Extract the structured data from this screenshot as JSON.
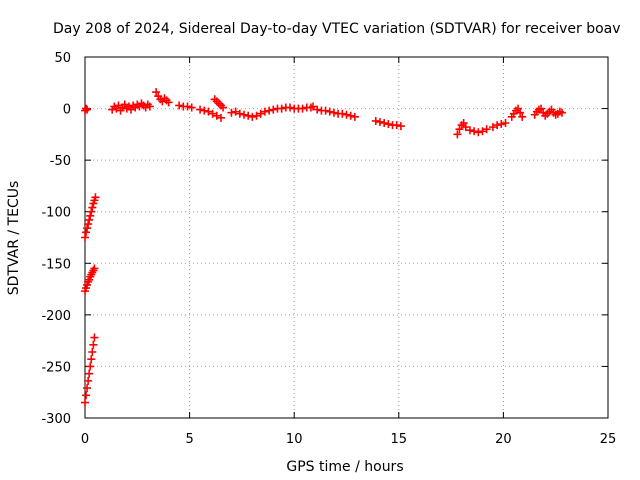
{
  "chart_data": {
    "type": "scatter",
    "title": "Day 208 of 2024, Sidereal Day-to-day VTEC variation (SDTVAR) for receiver boav",
    "xlabel": "GPS time / hours",
    "ylabel": "SDTVAR / TECUs",
    "xlim": [
      0,
      25
    ],
    "ylim": [
      -300,
      50
    ],
    "x_ticks": [
      0,
      5,
      10,
      15,
      20,
      25
    ],
    "y_ticks": [
      50,
      0,
      -50,
      -100,
      -150,
      -200,
      -250,
      -300
    ],
    "grid": true,
    "marker": "+",
    "color": "#ff0000",
    "series": [
      {
        "name": "SDTVAR",
        "points": [
          [
            0.0,
            -2
          ],
          [
            0.05,
            0
          ],
          [
            0.1,
            -1
          ],
          [
            0.0,
            -125
          ],
          [
            0.05,
            -120
          ],
          [
            0.1,
            -116
          ],
          [
            0.15,
            -112
          ],
          [
            0.2,
            -108
          ],
          [
            0.25,
            -104
          ],
          [
            0.3,
            -100
          ],
          [
            0.35,
            -96
          ],
          [
            0.4,
            -92
          ],
          [
            0.45,
            -89
          ],
          [
            0.5,
            -86
          ],
          [
            0.0,
            -177
          ],
          [
            0.05,
            -174
          ],
          [
            0.1,
            -171
          ],
          [
            0.15,
            -168
          ],
          [
            0.2,
            -166
          ],
          [
            0.25,
            -163
          ],
          [
            0.3,
            -161
          ],
          [
            0.35,
            -159
          ],
          [
            0.4,
            -157
          ],
          [
            0.45,
            -155
          ],
          [
            0.0,
            -285
          ],
          [
            0.05,
            -278
          ],
          [
            0.1,
            -271
          ],
          [
            0.15,
            -264
          ],
          [
            0.2,
            -257
          ],
          [
            0.25,
            -250
          ],
          [
            0.3,
            -243
          ],
          [
            0.35,
            -236
          ],
          [
            0.4,
            -229
          ],
          [
            0.45,
            -222
          ],
          [
            1.3,
            -1
          ],
          [
            1.4,
            2
          ],
          [
            1.5,
            0
          ],
          [
            1.6,
            3
          ],
          [
            1.7,
            -2
          ],
          [
            1.8,
            1
          ],
          [
            1.9,
            4
          ],
          [
            2.0,
            0
          ],
          [
            2.1,
            2
          ],
          [
            2.2,
            -1
          ],
          [
            2.3,
            3
          ],
          [
            2.4,
            1
          ],
          [
            2.5,
            4
          ],
          [
            2.6,
            2
          ],
          [
            2.7,
            5
          ],
          [
            2.8,
            3
          ],
          [
            2.9,
            1
          ],
          [
            3.0,
            4
          ],
          [
            3.1,
            2
          ],
          [
            3.4,
            16
          ],
          [
            3.5,
            12
          ],
          [
            3.6,
            9
          ],
          [
            3.7,
            7
          ],
          [
            3.8,
            10
          ],
          [
            3.9,
            8
          ],
          [
            4.0,
            6
          ],
          [
            4.5,
            3
          ],
          [
            4.7,
            2
          ],
          [
            4.9,
            2
          ],
          [
            5.1,
            1
          ],
          [
            5.5,
            -1
          ],
          [
            5.7,
            -2
          ],
          [
            5.9,
            -3
          ],
          [
            6.1,
            -5
          ],
          [
            6.3,
            -7
          ],
          [
            6.5,
            -9
          ],
          [
            6.2,
            9
          ],
          [
            6.3,
            7
          ],
          [
            6.4,
            5
          ],
          [
            6.5,
            3
          ],
          [
            6.6,
            1
          ],
          [
            7.0,
            -4
          ],
          [
            7.2,
            -3
          ],
          [
            7.4,
            -5
          ],
          [
            7.6,
            -6
          ],
          [
            7.8,
            -7
          ],
          [
            8.0,
            -8
          ],
          [
            8.2,
            -7
          ],
          [
            8.4,
            -5
          ],
          [
            8.6,
            -3
          ],
          [
            8.8,
            -2
          ],
          [
            9.0,
            -1
          ],
          [
            9.2,
            0
          ],
          [
            9.4,
            0
          ],
          [
            9.6,
            1
          ],
          [
            9.8,
            1
          ],
          [
            10.0,
            0
          ],
          [
            10.2,
            0
          ],
          [
            10.4,
            0
          ],
          [
            10.6,
            1
          ],
          [
            10.8,
            1
          ],
          [
            10.9,
            2
          ],
          [
            11.1,
            -1
          ],
          [
            11.3,
            -2
          ],
          [
            11.5,
            -2
          ],
          [
            11.7,
            -3
          ],
          [
            11.9,
            -4
          ],
          [
            12.1,
            -5
          ],
          [
            12.3,
            -5
          ],
          [
            12.5,
            -6
          ],
          [
            12.7,
            -7
          ],
          [
            12.9,
            -8
          ],
          [
            13.9,
            -12
          ],
          [
            14.1,
            -13
          ],
          [
            14.3,
            -14
          ],
          [
            14.5,
            -15
          ],
          [
            14.7,
            -16
          ],
          [
            14.9,
            -16
          ],
          [
            15.1,
            -17
          ],
          [
            17.8,
            -25
          ],
          [
            17.9,
            -20
          ],
          [
            18.0,
            -16
          ],
          [
            18.1,
            -14
          ],
          [
            18.2,
            -18
          ],
          [
            18.4,
            -21
          ],
          [
            18.6,
            -22
          ],
          [
            18.8,
            -23
          ],
          [
            19.0,
            -22
          ],
          [
            19.2,
            -20
          ],
          [
            19.5,
            -18
          ],
          [
            19.7,
            -16
          ],
          [
            19.9,
            -15
          ],
          [
            20.1,
            -14
          ],
          [
            20.4,
            -8
          ],
          [
            20.5,
            -5
          ],
          [
            20.6,
            -2
          ],
          [
            20.7,
            0
          ],
          [
            20.8,
            -4
          ],
          [
            20.9,
            -8
          ],
          [
            21.5,
            -6
          ],
          [
            21.6,
            -3
          ],
          [
            21.7,
            -1
          ],
          [
            21.8,
            0
          ],
          [
            21.9,
            -4
          ],
          [
            22.0,
            -7
          ],
          [
            22.1,
            -5
          ],
          [
            22.2,
            -3
          ],
          [
            22.3,
            -1
          ],
          [
            22.4,
            -4
          ],
          [
            22.5,
            -6
          ],
          [
            22.6,
            -5
          ],
          [
            22.7,
            -3
          ],
          [
            22.8,
            -4
          ]
        ]
      }
    ]
  }
}
